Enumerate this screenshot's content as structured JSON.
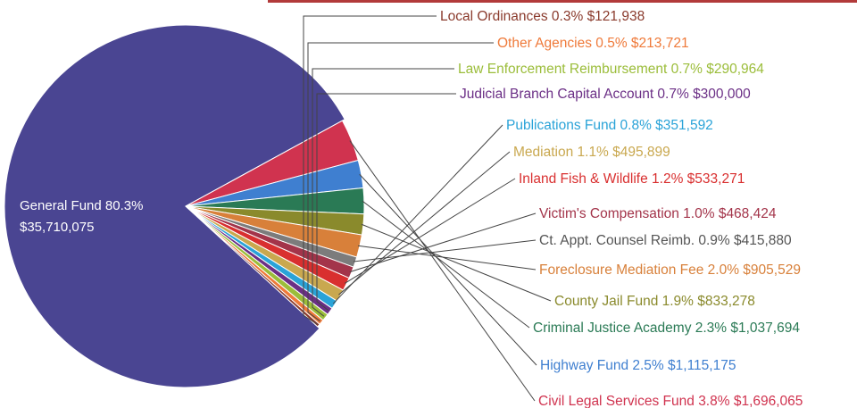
{
  "chart_data": {
    "type": "pie",
    "slices": [
      {
        "label": "General Fund",
        "percent": "80.3%",
        "amount": "$35,710,075",
        "value": 35710075,
        "color": "#4a4592"
      },
      {
        "label": "Civil Legal Services Fund",
        "percent": "3.8%",
        "amount": "$1,696,065",
        "value": 1696065,
        "color": "#d0334f"
      },
      {
        "label": "Highway Fund",
        "percent": "2.5%",
        "amount": "$1,115,175",
        "value": 1115175,
        "color": "#3f7fd0"
      },
      {
        "label": "Criminal Justice Academy",
        "percent": "2.3%",
        "amount": "$1,037,694",
        "value": 1037694,
        "color": "#2a7a55"
      },
      {
        "label": "County Jail Fund",
        "percent": "1.9%",
        "amount": "$833,278",
        "value": 833278,
        "color": "#8a8a2c"
      },
      {
        "label": "Foreclosure Mediation Fee",
        "percent": "2.0%",
        "amount": "$905,529",
        "value": 905529,
        "color": "#d8803a"
      },
      {
        "label": "Ct. Appt. Counsel Reimb.",
        "percent": "0.9%",
        "amount": "$415,880",
        "value": 415880,
        "color": "#7c7c7c"
      },
      {
        "label": "Victim's Compensation",
        "percent": "1.0%",
        "amount": "$468,424",
        "value": 468424,
        "color": "#a3344a"
      },
      {
        "label": "Inland Fish & Wildlife",
        "percent": "1.2%",
        "amount": "$533,271",
        "value": 533271,
        "color": "#d92f2f"
      },
      {
        "label": "Mediation",
        "percent": "1.1%",
        "amount": "$495,899",
        "value": 495899,
        "color": "#c9a84f"
      },
      {
        "label": "Publications Fund",
        "percent": "0.8%",
        "amount": "$351,592",
        "value": 351592,
        "color": "#2aa3d8"
      },
      {
        "label": "Judicial Branch Capital Account",
        "percent": "0.7%",
        "amount": "$300,000",
        "value": 300000,
        "color": "#6b2f86"
      },
      {
        "label": "Law Enforcement Reimbursement",
        "percent": "0.7%",
        "amount": "$290,964",
        "value": 290964,
        "color": "#9bbd3a"
      },
      {
        "label": "Other Agencies",
        "percent": "0.5%",
        "amount": "$213,721",
        "value": 213721,
        "color": "#ef7a3a"
      },
      {
        "label": "Local Ordinances",
        "percent": "0.3%",
        "amount": "$121,938",
        "value": 121938,
        "color": "#8a3a2c"
      }
    ]
  }
}
